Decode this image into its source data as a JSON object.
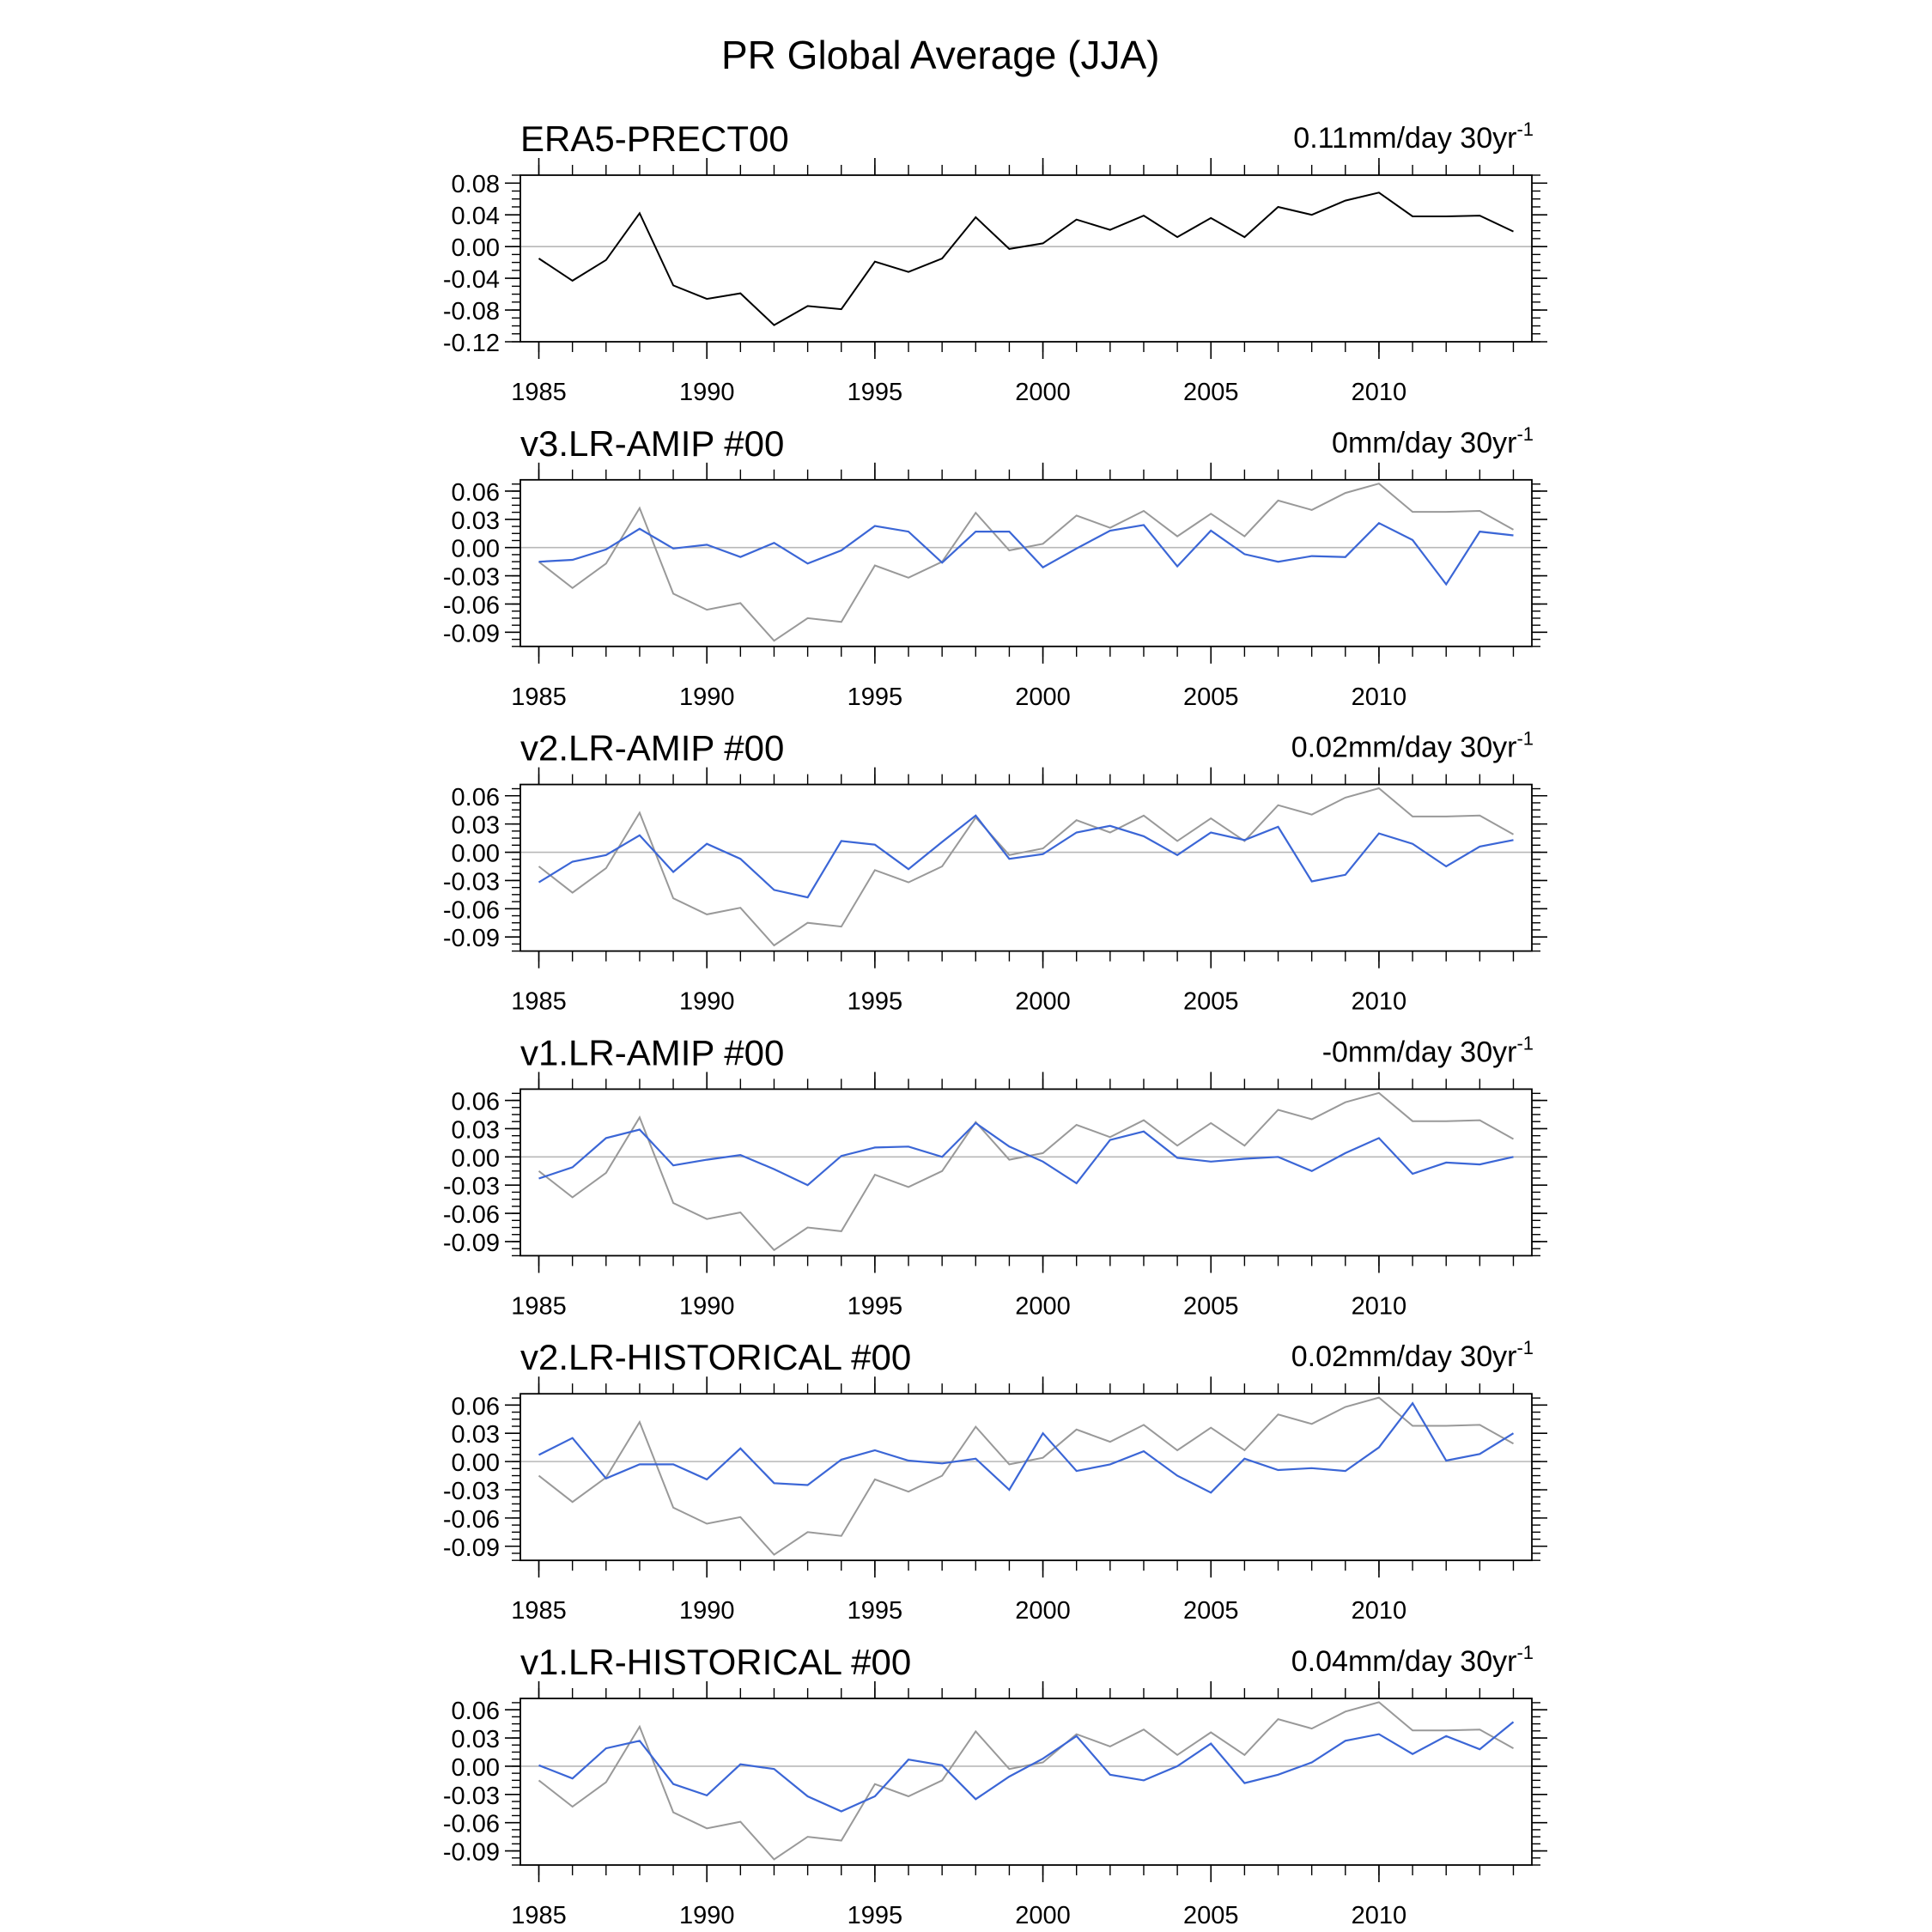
{
  "figure": {
    "title": "PR Global Average (JJA)"
  },
  "colors": {
    "reference_line": "#000000",
    "reference_overlay": "#999999",
    "model_line": "#3b66d6",
    "zero_line": "#b8b8b8",
    "frame": "#000000"
  },
  "chart_data": [
    {
      "type": "line",
      "title": "ERA5-PRECT00",
      "trend": "0.11mm/day 30yr",
      "trend_exp": "-1",
      "x": [
        1985,
        1986,
        1987,
        1988,
        1989,
        1990,
        1991,
        1992,
        1993,
        1994,
        1995,
        1996,
        1997,
        1998,
        1999,
        2000,
        2001,
        2002,
        2003,
        2004,
        2005,
        2006,
        2007,
        2008,
        2009,
        2010,
        2011,
        2012,
        2013,
        2014
      ],
      "xticks": [
        1985,
        1990,
        1995,
        2000,
        2005,
        2010
      ],
      "xtick_labels": [
        "1985",
        "1990",
        "1995",
        "2000",
        "2005",
        "2010"
      ],
      "ylim": [
        -0.12,
        0.09
      ],
      "yticks": [
        0.08,
        0.04,
        0.0,
        -0.04,
        -0.08,
        -0.12
      ],
      "ytick_labels": [
        "0.08",
        "0.04",
        "0.00",
        "-0.04",
        "-0.08",
        "-0.12"
      ],
      "series": [
        {
          "name": "ERA5",
          "role": "reference",
          "values": [
            -0.015,
            -0.043,
            -0.017,
            0.042,
            -0.049,
            -0.066,
            -0.059,
            -0.099,
            -0.075,
            -0.079,
            -0.019,
            -0.032,
            -0.015,
            0.037,
            -0.003,
            0.004,
            0.034,
            0.021,
            0.039,
            0.012,
            0.036,
            0.012,
            0.05,
            0.04,
            0.058,
            0.068,
            0.038,
            0.038,
            0.039,
            0.019
          ]
        }
      ]
    },
    {
      "type": "line",
      "title": "v3.LR-AMIP  #00",
      "trend": "0mm/day 30yr",
      "trend_exp": "-1",
      "x": [
        1985,
        1986,
        1987,
        1988,
        1989,
        1990,
        1991,
        1992,
        1993,
        1994,
        1995,
        1996,
        1997,
        1998,
        1999,
        2000,
        2001,
        2002,
        2003,
        2004,
        2005,
        2006,
        2007,
        2008,
        2009,
        2010,
        2011,
        2012,
        2013,
        2014
      ],
      "xticks": [
        1985,
        1990,
        1995,
        2000,
        2005,
        2010
      ],
      "xtick_labels": [
        "1985",
        "1990",
        "1995",
        "2000",
        "2005",
        "2010"
      ],
      "ylim": [
        -0.105,
        0.072
      ],
      "yticks": [
        0.06,
        0.03,
        0.0,
        -0.03,
        -0.06,
        -0.09
      ],
      "ytick_labels": [
        "0.06",
        "0.03",
        "0.00",
        "-0.03",
        "-0.06",
        "-0.09"
      ],
      "series": [
        {
          "name": "ERA5",
          "role": "reference",
          "values": [
            -0.015,
            -0.043,
            -0.017,
            0.042,
            -0.049,
            -0.066,
            -0.059,
            -0.099,
            -0.075,
            -0.079,
            -0.019,
            -0.032,
            -0.015,
            0.037,
            -0.003,
            0.004,
            0.034,
            0.021,
            0.039,
            0.012,
            0.036,
            0.012,
            0.05,
            0.04,
            0.058,
            0.068,
            0.038,
            0.038,
            0.039,
            0.019
          ]
        },
        {
          "name": "v3.LR-AMIP",
          "role": "model",
          "values": [
            -0.015,
            -0.013,
            -0.002,
            0.02,
            -0.001,
            0.003,
            -0.01,
            0.005,
            -0.017,
            -0.003,
            0.023,
            0.017,
            -0.016,
            0.017,
            0.017,
            -0.021,
            -0.001,
            0.018,
            0.024,
            -0.02,
            0.018,
            -0.007,
            -0.015,
            -0.009,
            -0.01,
            0.026,
            0.008,
            -0.039,
            0.017,
            0.013
          ]
        }
      ]
    },
    {
      "type": "line",
      "title": "v2.LR-AMIP  #00",
      "trend": "0.02mm/day 30yr",
      "trend_exp": "-1",
      "x": [
        1985,
        1986,
        1987,
        1988,
        1989,
        1990,
        1991,
        1992,
        1993,
        1994,
        1995,
        1996,
        1997,
        1998,
        1999,
        2000,
        2001,
        2002,
        2003,
        2004,
        2005,
        2006,
        2007,
        2008,
        2009,
        2010,
        2011,
        2012,
        2013,
        2014
      ],
      "xticks": [
        1985,
        1990,
        1995,
        2000,
        2005,
        2010
      ],
      "xtick_labels": [
        "1985",
        "1990",
        "1995",
        "2000",
        "2005",
        "2010"
      ],
      "ylim": [
        -0.105,
        0.072
      ],
      "yticks": [
        0.06,
        0.03,
        0.0,
        -0.03,
        -0.06,
        -0.09
      ],
      "ytick_labels": [
        "0.06",
        "0.03",
        "0.00",
        "-0.03",
        "-0.06",
        "-0.09"
      ],
      "series": [
        {
          "name": "ERA5",
          "role": "reference",
          "values": [
            -0.015,
            -0.043,
            -0.017,
            0.042,
            -0.049,
            -0.066,
            -0.059,
            -0.099,
            -0.075,
            -0.079,
            -0.019,
            -0.032,
            -0.015,
            0.037,
            -0.003,
            0.004,
            0.034,
            0.021,
            0.039,
            0.012,
            0.036,
            0.012,
            0.05,
            0.04,
            0.058,
            0.068,
            0.038,
            0.038,
            0.039,
            0.019
          ]
        },
        {
          "name": "v2.LR-AMIP",
          "role": "model",
          "values": [
            -0.032,
            -0.01,
            -0.003,
            0.018,
            -0.021,
            0.009,
            -0.007,
            -0.04,
            -0.048,
            0.012,
            0.008,
            -0.018,
            0.011,
            0.039,
            -0.007,
            -0.002,
            0.021,
            0.028,
            0.017,
            -0.003,
            0.021,
            0.013,
            0.027,
            -0.031,
            -0.024,
            0.02,
            0.009,
            -0.015,
            0.006,
            0.013
          ]
        }
      ]
    },
    {
      "type": "line",
      "title": "v1.LR-AMIP  #00",
      "trend": "-0mm/day 30yr",
      "trend_exp": "-1",
      "x": [
        1985,
        1986,
        1987,
        1988,
        1989,
        1990,
        1991,
        1992,
        1993,
        1994,
        1995,
        1996,
        1997,
        1998,
        1999,
        2000,
        2001,
        2002,
        2003,
        2004,
        2005,
        2006,
        2007,
        2008,
        2009,
        2010,
        2011,
        2012,
        2013,
        2014
      ],
      "xticks": [
        1985,
        1990,
        1995,
        2000,
        2005,
        2010
      ],
      "xtick_labels": [
        "1985",
        "1990",
        "1995",
        "2000",
        "2005",
        "2010"
      ],
      "ylim": [
        -0.105,
        0.072
      ],
      "yticks": [
        0.06,
        0.03,
        0.0,
        -0.03,
        -0.06,
        -0.09
      ],
      "ytick_labels": [
        "0.06",
        "0.03",
        "0.00",
        "-0.03",
        "-0.06",
        "-0.09"
      ],
      "series": [
        {
          "name": "ERA5",
          "role": "reference",
          "values": [
            -0.015,
            -0.043,
            -0.017,
            0.042,
            -0.049,
            -0.066,
            -0.059,
            -0.099,
            -0.075,
            -0.079,
            -0.019,
            -0.032,
            -0.015,
            0.037,
            -0.003,
            0.004,
            0.034,
            0.021,
            0.039,
            0.012,
            0.036,
            0.012,
            0.05,
            0.04,
            0.058,
            0.068,
            0.038,
            0.038,
            0.039,
            0.019
          ]
        },
        {
          "name": "v1.LR-AMIP",
          "role": "model",
          "values": [
            -0.023,
            -0.011,
            0.02,
            0.029,
            -0.009,
            -0.003,
            0.002,
            -0.013,
            -0.03,
            0.001,
            0.01,
            0.011,
            0.0,
            0.036,
            0.011,
            -0.005,
            -0.028,
            0.018,
            0.027,
            -0.001,
            -0.005,
            -0.002,
            0.0,
            -0.015,
            0.004,
            0.02,
            -0.018,
            -0.006,
            -0.008,
            0.0
          ]
        }
      ]
    },
    {
      "type": "line",
      "title": "v2.LR-HISTORICAL  #00",
      "trend": "0.02mm/day 30yr",
      "trend_exp": "-1",
      "x": [
        1985,
        1986,
        1987,
        1988,
        1989,
        1990,
        1991,
        1992,
        1993,
        1994,
        1995,
        1996,
        1997,
        1998,
        1999,
        2000,
        2001,
        2002,
        2003,
        2004,
        2005,
        2006,
        2007,
        2008,
        2009,
        2010,
        2011,
        2012,
        2013,
        2014
      ],
      "xticks": [
        1985,
        1990,
        1995,
        2000,
        2005,
        2010
      ],
      "xtick_labels": [
        "1985",
        "1990",
        "1995",
        "2000",
        "2005",
        "2010"
      ],
      "ylim": [
        -0.105,
        0.072
      ],
      "yticks": [
        0.06,
        0.03,
        0.0,
        -0.03,
        -0.06,
        -0.09
      ],
      "ytick_labels": [
        "0.06",
        "0.03",
        "0.00",
        "-0.03",
        "-0.06",
        "-0.09"
      ],
      "series": [
        {
          "name": "ERA5",
          "role": "reference",
          "values": [
            -0.015,
            -0.043,
            -0.017,
            0.042,
            -0.049,
            -0.066,
            -0.059,
            -0.099,
            -0.075,
            -0.079,
            -0.019,
            -0.032,
            -0.015,
            0.037,
            -0.003,
            0.004,
            0.034,
            0.021,
            0.039,
            0.012,
            0.036,
            0.012,
            0.05,
            0.04,
            0.058,
            0.068,
            0.038,
            0.038,
            0.039,
            0.019
          ]
        },
        {
          "name": "v2.LR-HISTORICAL",
          "role": "model",
          "values": [
            0.007,
            0.025,
            -0.018,
            -0.003,
            -0.003,
            -0.019,
            0.014,
            -0.023,
            -0.025,
            0.002,
            0.012,
            0.001,
            -0.002,
            0.003,
            -0.03,
            0.03,
            -0.01,
            -0.003,
            0.011,
            -0.015,
            -0.033,
            0.003,
            -0.009,
            -0.007,
            -0.01,
            0.015,
            0.062,
            0.001,
            0.008,
            0.03
          ]
        }
      ]
    },
    {
      "type": "line",
      "title": "v1.LR-HISTORICAL  #00",
      "trend": "0.04mm/day 30yr",
      "trend_exp": "-1",
      "x": [
        1985,
        1986,
        1987,
        1988,
        1989,
        1990,
        1991,
        1992,
        1993,
        1994,
        1995,
        1996,
        1997,
        1998,
        1999,
        2000,
        2001,
        2002,
        2003,
        2004,
        2005,
        2006,
        2007,
        2008,
        2009,
        2010,
        2011,
        2012,
        2013,
        2014
      ],
      "xticks": [
        1985,
        1990,
        1995,
        2000,
        2005,
        2010
      ],
      "xtick_labels": [
        "1985",
        "1990",
        "1995",
        "2000",
        "2005",
        "2010"
      ],
      "ylim": [
        -0.105,
        0.072
      ],
      "yticks": [
        0.06,
        0.03,
        0.0,
        -0.03,
        -0.06,
        -0.09
      ],
      "ytick_labels": [
        "0.06",
        "0.03",
        "0.00",
        "-0.03",
        "-0.06",
        "-0.09"
      ],
      "series": [
        {
          "name": "ERA5",
          "role": "reference",
          "values": [
            -0.015,
            -0.043,
            -0.017,
            0.042,
            -0.049,
            -0.066,
            -0.059,
            -0.099,
            -0.075,
            -0.079,
            -0.019,
            -0.032,
            -0.015,
            0.037,
            -0.003,
            0.004,
            0.034,
            0.021,
            0.039,
            0.012,
            0.036,
            0.012,
            0.05,
            0.04,
            0.058,
            0.068,
            0.038,
            0.038,
            0.039,
            0.019
          ]
        },
        {
          "name": "v1.LR-HISTORICAL",
          "role": "model",
          "values": [
            0.001,
            -0.013,
            0.019,
            0.027,
            -0.019,
            -0.031,
            0.002,
            -0.003,
            -0.032,
            -0.048,
            -0.032,
            0.007,
            0.001,
            -0.035,
            -0.011,
            0.008,
            0.032,
            -0.009,
            -0.015,
            0.0,
            0.024,
            -0.018,
            -0.009,
            0.004,
            0.027,
            0.034,
            0.013,
            0.032,
            0.018,
            0.047
          ]
        }
      ]
    }
  ]
}
